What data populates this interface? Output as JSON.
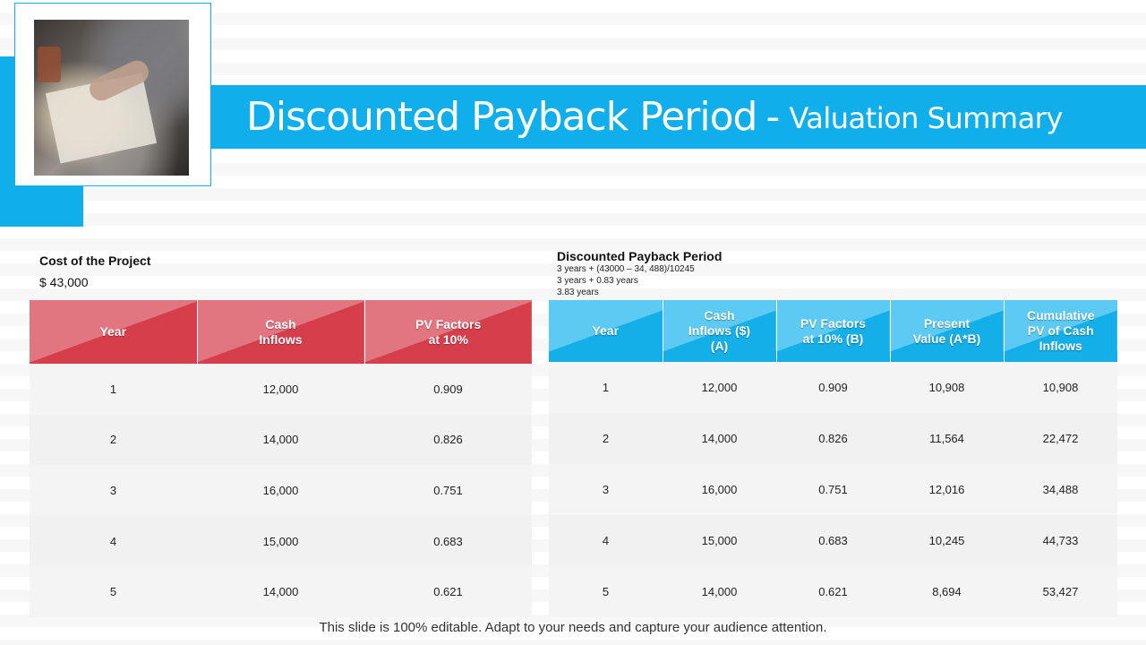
{
  "header": {
    "title_main": "Discounted Payback Period",
    "title_sep": "-",
    "title_sub": "Valuation Summary"
  },
  "left": {
    "heading": "Cost of the Project",
    "value": "$ 43,000",
    "columns": [
      "Year",
      "Cash Inflows",
      "PV Factors at 10%"
    ],
    "rows": [
      [
        "1",
        "12,000",
        "0.909"
      ],
      [
        "2",
        "14,000",
        "0.826"
      ],
      [
        "3",
        "16,000",
        "0.751"
      ],
      [
        "4",
        "15,000",
        "0.683"
      ],
      [
        "5",
        "14,000",
        "0.621"
      ]
    ]
  },
  "right": {
    "heading": "Discounted Payback Period",
    "calc_lines": [
      "3 years + (43000 – 34, 488)/10245",
      "3 years + 0.83 years",
      "3.83 years"
    ],
    "columns": [
      "Year",
      "Cash Inflows ($) (A)",
      "PV Factors at 10% (B)",
      "Present Value (A*B)",
      "Cumulative PV of Cash Inflows"
    ],
    "rows": [
      [
        "1",
        "12,000",
        "0.909",
        "10,908",
        "10,908"
      ],
      [
        "2",
        "14,000",
        "0.826",
        "11,564",
        "22,472"
      ],
      [
        "3",
        "16,000",
        "0.751",
        "12,016",
        "34,488"
      ],
      [
        "4",
        "15,000",
        "0.683",
        "10,245",
        "44,733"
      ],
      [
        "5",
        "14,000",
        "0.621",
        "8,694",
        "53,427"
      ]
    ]
  },
  "footer": {
    "text": "This slide is 100% editable. Adapt to your needs and capture your audience attention."
  },
  "colors": {
    "accent_blue": "#10aeea",
    "accent_red": "#d63e4c"
  }
}
